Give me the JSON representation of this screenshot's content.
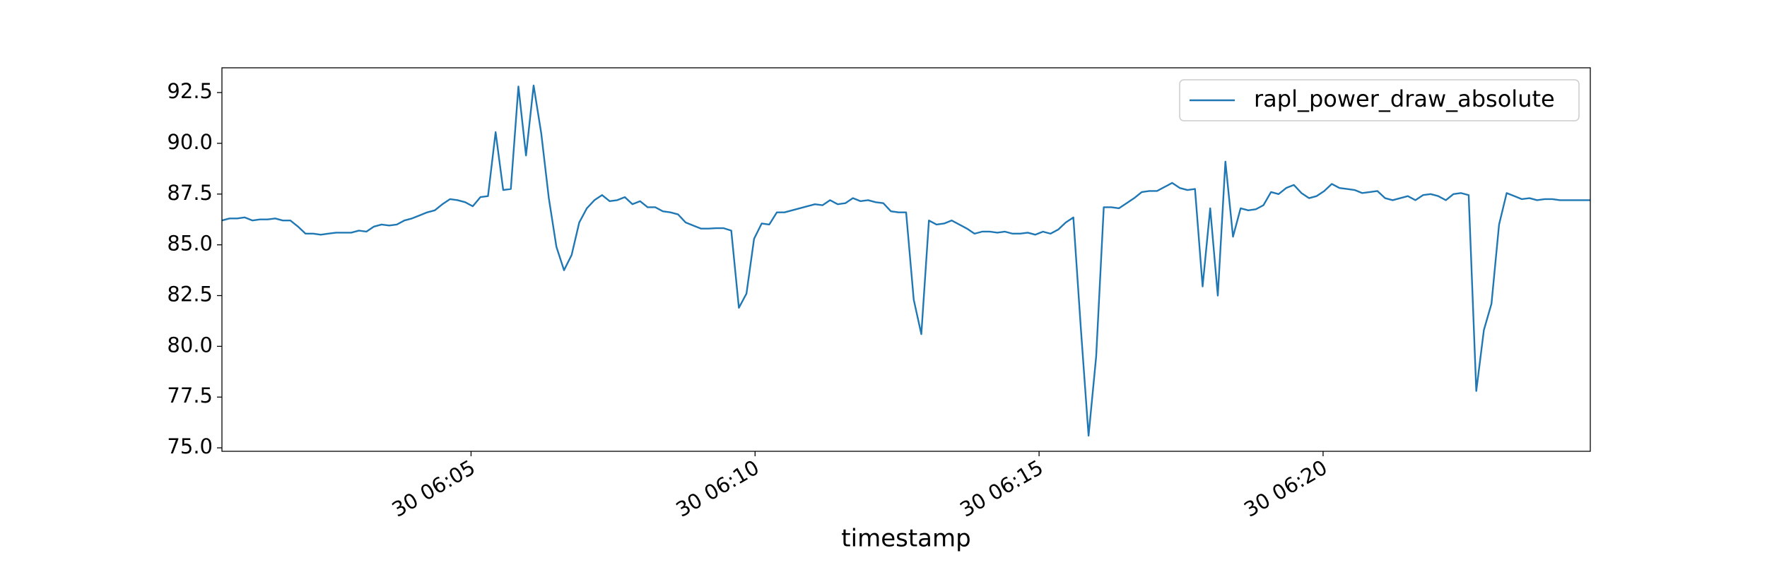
{
  "chart_data": {
    "type": "line",
    "xlabel": "timestamp",
    "series": [
      {
        "name": "rapl_power_draw_absolute",
        "color": "#1f77b4",
        "values": [
          86.2,
          86.3,
          86.3,
          86.35,
          86.2,
          86.25,
          86.25,
          86.3,
          86.2,
          86.2,
          85.9,
          85.55,
          85.55,
          85.5,
          85.55,
          85.6,
          85.6,
          85.6,
          85.7,
          85.65,
          85.9,
          86.0,
          85.95,
          86.0,
          86.2,
          86.3,
          86.45,
          86.6,
          86.7,
          87.0,
          87.25,
          87.2,
          87.1,
          86.9,
          87.35,
          87.4,
          90.55,
          87.7,
          87.75,
          92.8,
          89.4,
          92.85,
          90.5,
          87.3,
          84.9,
          83.75,
          84.5,
          86.1,
          86.8,
          87.2,
          87.45,
          87.15,
          87.2,
          87.35,
          87.0,
          87.15,
          86.85,
          86.85,
          86.65,
          86.6,
          86.5,
          86.1,
          85.95,
          85.8,
          85.8,
          85.82,
          85.82,
          85.7,
          81.9,
          82.6,
          85.3,
          86.05,
          86.0,
          86.6,
          86.6,
          86.7,
          86.8,
          86.9,
          87.0,
          86.95,
          87.2,
          87.0,
          87.05,
          87.3,
          87.15,
          87.2,
          87.1,
          87.05,
          86.65,
          86.6,
          86.6,
          82.3,
          80.6,
          86.2,
          86.0,
          86.05,
          86.2,
          86.0,
          85.8,
          85.55,
          85.65,
          85.65,
          85.6,
          85.65,
          85.55,
          85.55,
          85.6,
          85.5,
          85.65,
          85.55,
          85.75,
          86.1,
          86.35,
          80.8,
          75.6,
          79.5,
          86.85,
          86.85,
          86.8,
          87.05,
          87.3,
          87.6,
          87.65,
          87.65,
          87.85,
          88.05,
          87.8,
          87.7,
          87.75,
          82.95,
          86.8,
          82.5,
          89.1,
          85.4,
          86.8,
          86.7,
          86.75,
          86.95,
          87.6,
          87.5,
          87.8,
          87.95,
          87.55,
          87.3,
          87.4,
          87.65,
          88.0,
          87.8,
          87.75,
          87.7,
          87.55,
          87.6,
          87.65,
          87.3,
          87.2,
          87.3,
          87.4,
          87.2,
          87.45,
          87.5,
          87.4,
          87.2,
          87.5,
          87.55,
          87.45,
          77.8,
          80.8,
          82.1,
          86.0,
          87.55,
          87.4,
          87.25,
          87.3,
          87.2,
          87.25,
          87.25,
          87.2,
          87.2,
          87.2,
          87.2,
          87.2
        ]
      }
    ],
    "xlim": [
      0,
      180
    ],
    "xticks": [
      {
        "value": 32.77,
        "label": "30 06:05"
      },
      {
        "value": 70.13,
        "label": "30 06:10"
      },
      {
        "value": 107.49,
        "label": "30 06:15"
      },
      {
        "value": 144.85,
        "label": "30 06:20"
      }
    ],
    "ylim": [
      74.83,
      93.72
    ],
    "yticks": [
      {
        "value": 75,
        "label": "75.0"
      },
      77.5,
      {
        "value": 80,
        "label": "80.0"
      },
      82.5,
      {
        "value": 85,
        "label": "85.0"
      },
      87.5,
      {
        "value": 90,
        "label": "90.0"
      },
      92.5
    ],
    "legend": "upper right"
  }
}
